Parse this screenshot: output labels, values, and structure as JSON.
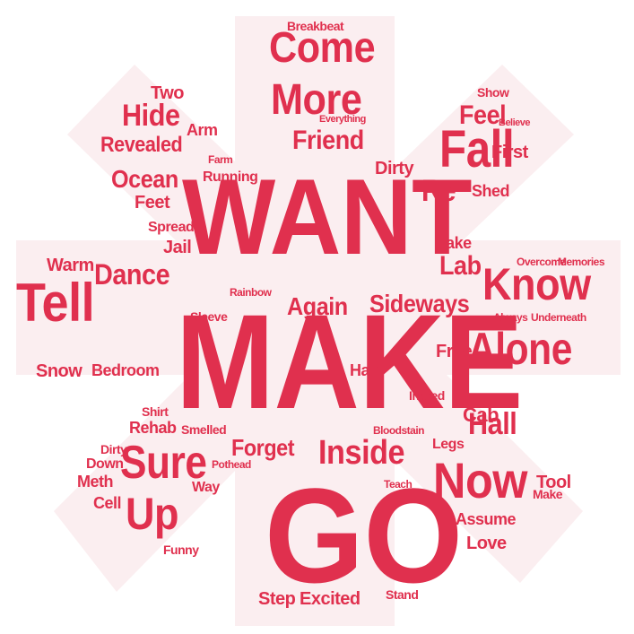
{
  "cloud": {
    "shape": "asterisk-star",
    "colors": {
      "word": "#e0304e",
      "shape_fill": "#fbeef0",
      "background": "#ffffff"
    },
    "big": {
      "want": "WANT",
      "make": "MAKE",
      "go": "GO"
    },
    "large": {
      "tell": "Tell",
      "know": "Know",
      "fall": "Fall",
      "come": "Come",
      "more": "More",
      "alone": "Alone",
      "now": "Now",
      "sure": "Sure",
      "up": "Up",
      "dance": "Dance",
      "hide": "Hide",
      "lab": "Lab",
      "inside": "Inside",
      "ocean": "Ocean",
      "hall": "Hall",
      "friend": "Friend",
      "revealed": "Revealed",
      "re": "Re",
      "feel": "Feel",
      "again": "Again",
      "sideways": "Sideways",
      "forget": "Forget"
    },
    "medium": {
      "two": "Two",
      "arm": "Arm",
      "feet": "Feet",
      "spread": "Spread",
      "jail": "Jail",
      "warm": "Warm",
      "snow": "Snow",
      "bedroom": "Bedroom",
      "dirty": "Dirty",
      "first": "First",
      "shed": "Shed",
      "take": "Take",
      "assume": "Assume",
      "love": "Love",
      "cab": "Cab",
      "hair": "Hair",
      "legs": "Legs",
      "excited": "Excited",
      "step": "Step",
      "rehab": "Rehab",
      "shirt": "Shirt",
      "down": "Down",
      "meth": "Meth",
      "cell": "Cell",
      "funny": "Funny",
      "way": "Way",
      "smelled": "Smelled",
      "free": "Free",
      "tool": "Tool",
      "make2": "Make",
      "breakbeat": "Breakbeat",
      "running": "Running",
      "farm": "Farm",
      "show": "Show",
      "sleeve": "Sleeve",
      "inbred": "Inbred",
      "memories": "Memories",
      "overcome": "Overcome",
      "underneath": "Underneath",
      "always": "Always",
      "pothead": "Pothead",
      "teach": "Teach",
      "bloodstain": "Bloodstain",
      "believe": "Believe",
      "everything": "Everything",
      "rainbow": "Rainbow",
      "stand": "Stand",
      "dirty2": "Dirty"
    }
  }
}
